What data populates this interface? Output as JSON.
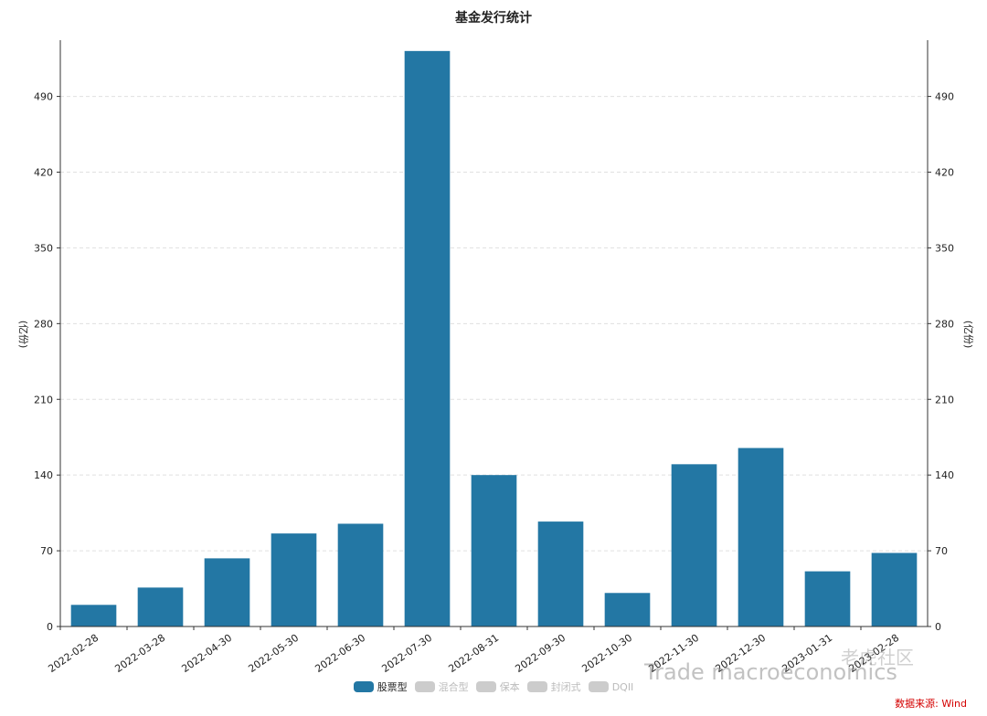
{
  "chart_data": {
    "type": "bar",
    "title": "基金发行统计",
    "ylabel_left": "(亿份)",
    "ylabel_right": "(亿份)",
    "ylim": [
      0,
      542
    ],
    "yticks": [
      0,
      70,
      140,
      210,
      280,
      350,
      420,
      490
    ],
    "categories": [
      "2022-02-28",
      "2022-03-28",
      "2022-04-30",
      "2022-05-30",
      "2022-06-30",
      "2022-07-30",
      "2022-08-31",
      "2022-09-30",
      "2022-10-30",
      "2022-11-30",
      "2022-12-30",
      "2023-01-31",
      "2023-02-28"
    ],
    "series": [
      {
        "name": "股票型",
        "values": [
          20,
          36,
          63,
          86,
          95,
          532,
          140,
          97,
          31,
          150,
          165,
          51,
          68
        ]
      }
    ],
    "legend": [
      {
        "name": "股票型",
        "active": true
      },
      {
        "name": "混合型",
        "active": false
      },
      {
        "name": "保本",
        "active": false
      },
      {
        "name": "封闭式",
        "active": false
      },
      {
        "name": "DQII",
        "active": false
      }
    ],
    "grid": true,
    "legend_position": "bottom",
    "bar_color": "#2377a4"
  },
  "source_text": "数据来源: Wind",
  "watermark_text": "Trade macroeconomics",
  "watermark_brand": "老虎社区"
}
